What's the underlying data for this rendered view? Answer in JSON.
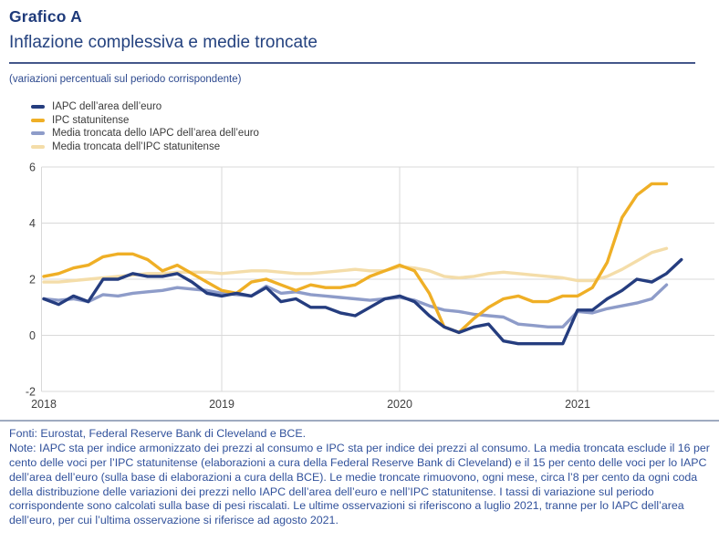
{
  "page": {
    "kicker": "Grafico A",
    "title": "Inflazione complessiva e medie troncate",
    "unit_note": "(variazioni percentuali sul periodo corrispondente)"
  },
  "footer": {
    "source": "Fonti: Eurostat, Federal Reserve Bank di Cleveland e BCE.",
    "note": "Note: IAPC sta per indice armonizzato dei prezzi al consumo e IPC sta per indice dei prezzi al consumo. La media troncata esclude il 16 per cento delle voci per l’IPC statunitense (elaborazioni a cura della Federal Reserve Bank di Cleveland) e il 15 per cento delle voci per lo IAPC dell’area dell’euro (sulla base di elaborazioni a cura della BCE). Le medie troncate rimuovono, ogni mese, circa l’8 per cento da ogni coda della distribuzione delle variazioni dei prezzi nello IAPC dell’area dell’euro e nell’IPC statunitense. I tassi di variazione sul periodo corrispondente sono calcolati sulla base di pesi riscalati. Le ultime osservazioni si riferiscono a luglio 2021, tranne per lo IAPC dell’area dell’euro, per cui l’ultima osservazione si riferisce ad agosto 2021."
  },
  "colors": {
    "title_navy": "#1e3a7a",
    "rule_top": "#44578a",
    "rule_bottom": "#9fabc0",
    "note_blue": "#31519b",
    "gridline": "#d9d9d9",
    "axis_text": "#404040"
  },
  "chart_data": {
    "type": "line",
    "title": "Inflazione complessiva e medie troncate",
    "unit": "variazioni percentuali sul periodo corrispondente",
    "x_start": "2018-01",
    "x_frequency": "monthly",
    "x_tick_labels": [
      "2018",
      "2019",
      "2020",
      "2021"
    ],
    "y_ticks": [
      6,
      4,
      2,
      0,
      -2
    ],
    "ylim": [
      -2,
      6
    ],
    "grid": true,
    "legend_position": "top-left",
    "series": [
      {
        "name": "IAPC dell’area dell’euro",
        "color": "#253d7f",
        "last_observation": "agosto 2021",
        "values": [
          1.3,
          1.1,
          1.4,
          1.2,
          2.0,
          2.0,
          2.2,
          2.1,
          2.1,
          2.2,
          1.9,
          1.5,
          1.4,
          1.5,
          1.4,
          1.7,
          1.2,
          1.3,
          1.0,
          1.0,
          0.8,
          0.7,
          1.0,
          1.3,
          1.4,
          1.2,
          0.7,
          0.3,
          0.1,
          0.3,
          0.4,
          -0.2,
          -0.3,
          -0.3,
          -0.3,
          -0.3,
          0.9,
          0.9,
          1.3,
          1.6,
          2.0,
          1.9,
          2.2,
          2.7
        ]
      },
      {
        "name": "IPC statunitense",
        "color": "#efaf26",
        "last_observation": "luglio 2021",
        "values": [
          2.1,
          2.2,
          2.4,
          2.5,
          2.8,
          2.9,
          2.9,
          2.7,
          2.3,
          2.5,
          2.2,
          1.9,
          1.6,
          1.5,
          1.9,
          2.0,
          1.8,
          1.6,
          1.8,
          1.7,
          1.7,
          1.8,
          2.1,
          2.3,
          2.5,
          2.3,
          1.5,
          0.3,
          0.1,
          0.6,
          1.0,
          1.3,
          1.4,
          1.2,
          1.2,
          1.4,
          1.4,
          1.7,
          2.6,
          4.2,
          5.0,
          5.4,
          5.4
        ]
      },
      {
        "name": "Media troncata dello IAPC dell’area dell’euro",
        "color": "#8e9cc9",
        "last_observation": "luglio 2021",
        "values": [
          1.3,
          1.25,
          1.3,
          1.2,
          1.45,
          1.4,
          1.5,
          1.55,
          1.6,
          1.7,
          1.65,
          1.6,
          1.5,
          1.45,
          1.4,
          1.75,
          1.5,
          1.55,
          1.45,
          1.4,
          1.35,
          1.3,
          1.25,
          1.3,
          1.35,
          1.25,
          1.05,
          0.9,
          0.85,
          0.75,
          0.7,
          0.65,
          0.4,
          0.35,
          0.3,
          0.3,
          0.85,
          0.8,
          0.95,
          1.05,
          1.15,
          1.3,
          1.8
        ]
      },
      {
        "name": "Media troncata dell’IPC statunitense",
        "color": "#f4dda9",
        "last_observation": "luglio 2021",
        "values": [
          1.9,
          1.9,
          1.95,
          2.0,
          2.05,
          2.1,
          2.15,
          2.2,
          2.2,
          2.25,
          2.25,
          2.25,
          2.2,
          2.25,
          2.3,
          2.3,
          2.25,
          2.2,
          2.2,
          2.25,
          2.3,
          2.35,
          2.3,
          2.3,
          2.45,
          2.4,
          2.3,
          2.1,
          2.05,
          2.1,
          2.2,
          2.25,
          2.2,
          2.15,
          2.1,
          2.05,
          1.95,
          1.95,
          2.1,
          2.35,
          2.65,
          2.95,
          3.1
        ]
      }
    ]
  }
}
